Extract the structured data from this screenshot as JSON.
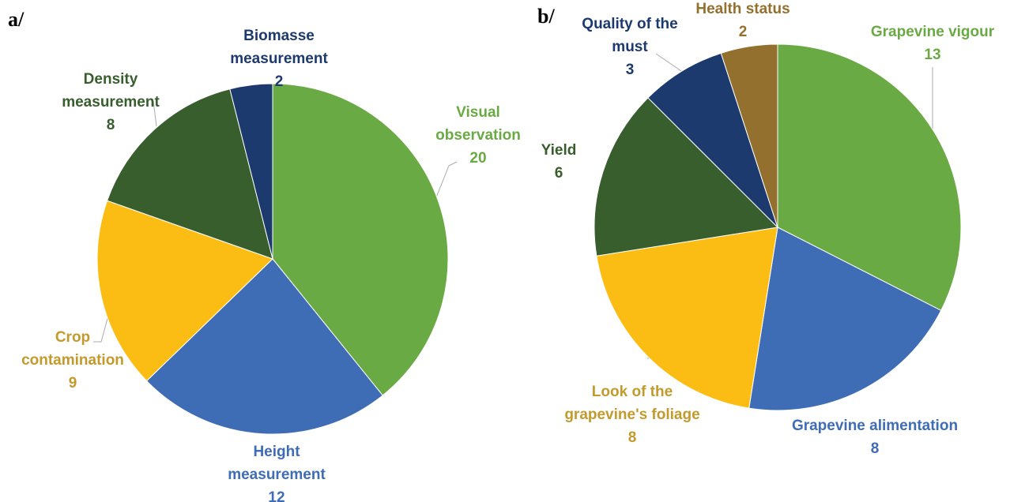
{
  "chart_data": [
    {
      "type": "pie",
      "title": "a/",
      "categories": [
        "Visual observation",
        "Height measurement",
        "Crop contamination",
        "Density measurement",
        "Biomasse measurement"
      ],
      "values": [
        20,
        12,
        9,
        8,
        2
      ],
      "colors": [
        "#6aaa45",
        "#3e6cb5",
        "#fbbd13",
        "#375e2c",
        "#1d3a6e"
      ],
      "label_colors": [
        "#6aaa45",
        "#3e6cb5",
        "#c49a2c",
        "#375e2c",
        "#1d3a6e"
      ]
    },
    {
      "type": "pie",
      "title": "b/",
      "categories": [
        "Grapevine vigour",
        "Grapevine alimentation",
        "Look of the grapevine's foliage",
        "Yield",
        "Quality of the must",
        "Health status"
      ],
      "values": [
        13,
        8,
        8,
        6,
        3,
        2
      ],
      "colors": [
        "#6aaa45",
        "#3e6cb5",
        "#fbbd13",
        "#375e2c",
        "#1d3a6e",
        "#94702e"
      ],
      "label_colors": [
        "#6aaa45",
        "#3e6cb5",
        "#c49a2c",
        "#375e2c",
        "#1d3a6e",
        "#94702e"
      ]
    }
  ]
}
